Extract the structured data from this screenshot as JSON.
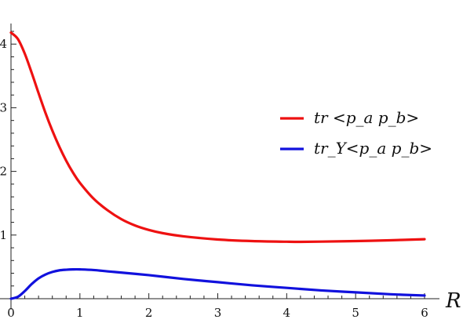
{
  "chart_data": {
    "type": "line",
    "xlabel": "R",
    "ylabel": "",
    "xlim": [
      0,
      6
    ],
    "ylim": [
      0,
      4.2
    ],
    "xticks": [
      0,
      1,
      2,
      3,
      4,
      5,
      6
    ],
    "yticks": [
      1,
      2,
      3,
      4
    ],
    "grid": false,
    "legend_position": "right",
    "series": [
      {
        "name": "tr <p_a p_b>",
        "color": "#ee1111",
        "x": [
          0,
          0.1,
          0.2,
          0.3,
          0.4,
          0.5,
          0.6,
          0.7,
          0.8,
          0.9,
          1.0,
          1.2,
          1.4,
          1.6,
          1.8,
          2.0,
          2.2,
          2.5,
          3.0,
          3.5,
          4.0,
          4.2,
          4.5,
          5.0,
          5.5,
          6.0
        ],
        "values": [
          4.18,
          4.08,
          3.85,
          3.55,
          3.23,
          2.92,
          2.64,
          2.39,
          2.17,
          1.98,
          1.82,
          1.57,
          1.39,
          1.25,
          1.15,
          1.08,
          1.03,
          0.98,
          0.93,
          0.905,
          0.895,
          0.893,
          0.897,
          0.905,
          0.918,
          0.935
        ]
      },
      {
        "name": "tr_Y<p_a p_b>",
        "color": "#1111dd",
        "x": [
          0,
          0.1,
          0.2,
          0.3,
          0.4,
          0.5,
          0.6,
          0.7,
          0.8,
          0.9,
          1.0,
          1.2,
          1.5,
          2.0,
          2.5,
          3.0,
          3.5,
          4.0,
          4.5,
          5.0,
          5.5,
          6.0
        ],
        "values": [
          0.0,
          0.03,
          0.12,
          0.23,
          0.32,
          0.38,
          0.42,
          0.445,
          0.455,
          0.46,
          0.46,
          0.45,
          0.42,
          0.37,
          0.31,
          0.26,
          0.21,
          0.17,
          0.13,
          0.1,
          0.07,
          0.05
        ]
      }
    ]
  }
}
